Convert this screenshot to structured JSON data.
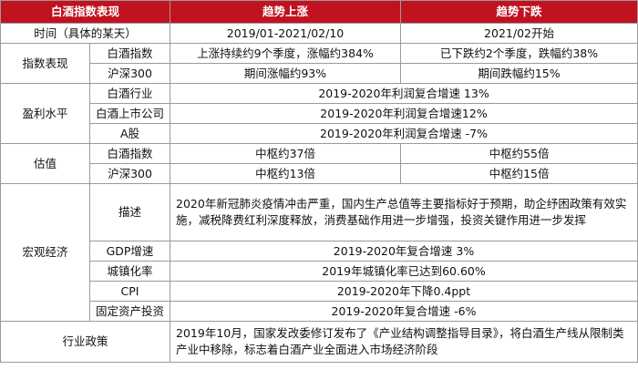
{
  "header": {
    "col1": "白酒指数表现",
    "col2": "趋势上涨",
    "col3": "趋势下跌"
  },
  "period": {
    "label": "时间（具体的某天）",
    "up": "2019/01-2021/02/10",
    "down": "2021/02开始"
  },
  "index_perf": {
    "label": "指数表现",
    "rows": [
      {
        "name": "白酒指数",
        "up": "上涨持续约9个季度，涨幅约384%",
        "down": "已下跌约2个季度，跌幅约38%"
      },
      {
        "name": "沪深300",
        "up": "期间涨幅约93%",
        "down": "期间跌幅约15%"
      }
    ]
  },
  "profit": {
    "label": "盈利水平",
    "rows": [
      {
        "name": "白酒行业",
        "value": "2019-2020年利润复合增速 13%"
      },
      {
        "name": "白酒上市公司",
        "value": "2019-2020年利润复合增速12%"
      },
      {
        "name": "A股",
        "value": "2019-2020年利润复合增速 -7%"
      }
    ]
  },
  "valuation": {
    "label": "估值",
    "rows": [
      {
        "name": "白酒指数",
        "up": "中枢约37倍",
        "down": "中枢约55倍"
      },
      {
        "name": "沪深300",
        "up": "中枢约13倍",
        "down": "中枢约15倍"
      }
    ]
  },
  "macro": {
    "label": "宏观经济",
    "rows": [
      {
        "name": "描述",
        "value": "2020年新冠肺炎疫情冲击严重，国内生产总值等主要指标好于预期，助企纾困政策有效实施，减税降费红利深度释放，消费基础作用进一步增强，投资关键作用进一步发挥"
      },
      {
        "name": "GDP增速",
        "value": "2019-2020年复合增速 3%"
      },
      {
        "name": "城镇化率",
        "value": "2019年城镇化率已达到60.60%"
      },
      {
        "name": "CPI",
        "value": "2019-2020年下降0.4ppt"
      },
      {
        "name": "固定资产投资",
        "value": "2019-2020年复合增速 -6%"
      }
    ]
  },
  "policy": {
    "label": "行业政策",
    "value": "2019年10月，国家发改委修订发布了《产业结构调整指导目录》，将白酒生产线从限制类产业中移除，标志着白酒产业全面进入市场经济阶段"
  },
  "colors": {
    "header_bg": "#c1121f",
    "header_text": "#ffffff",
    "border": "#9a9a9a"
  }
}
